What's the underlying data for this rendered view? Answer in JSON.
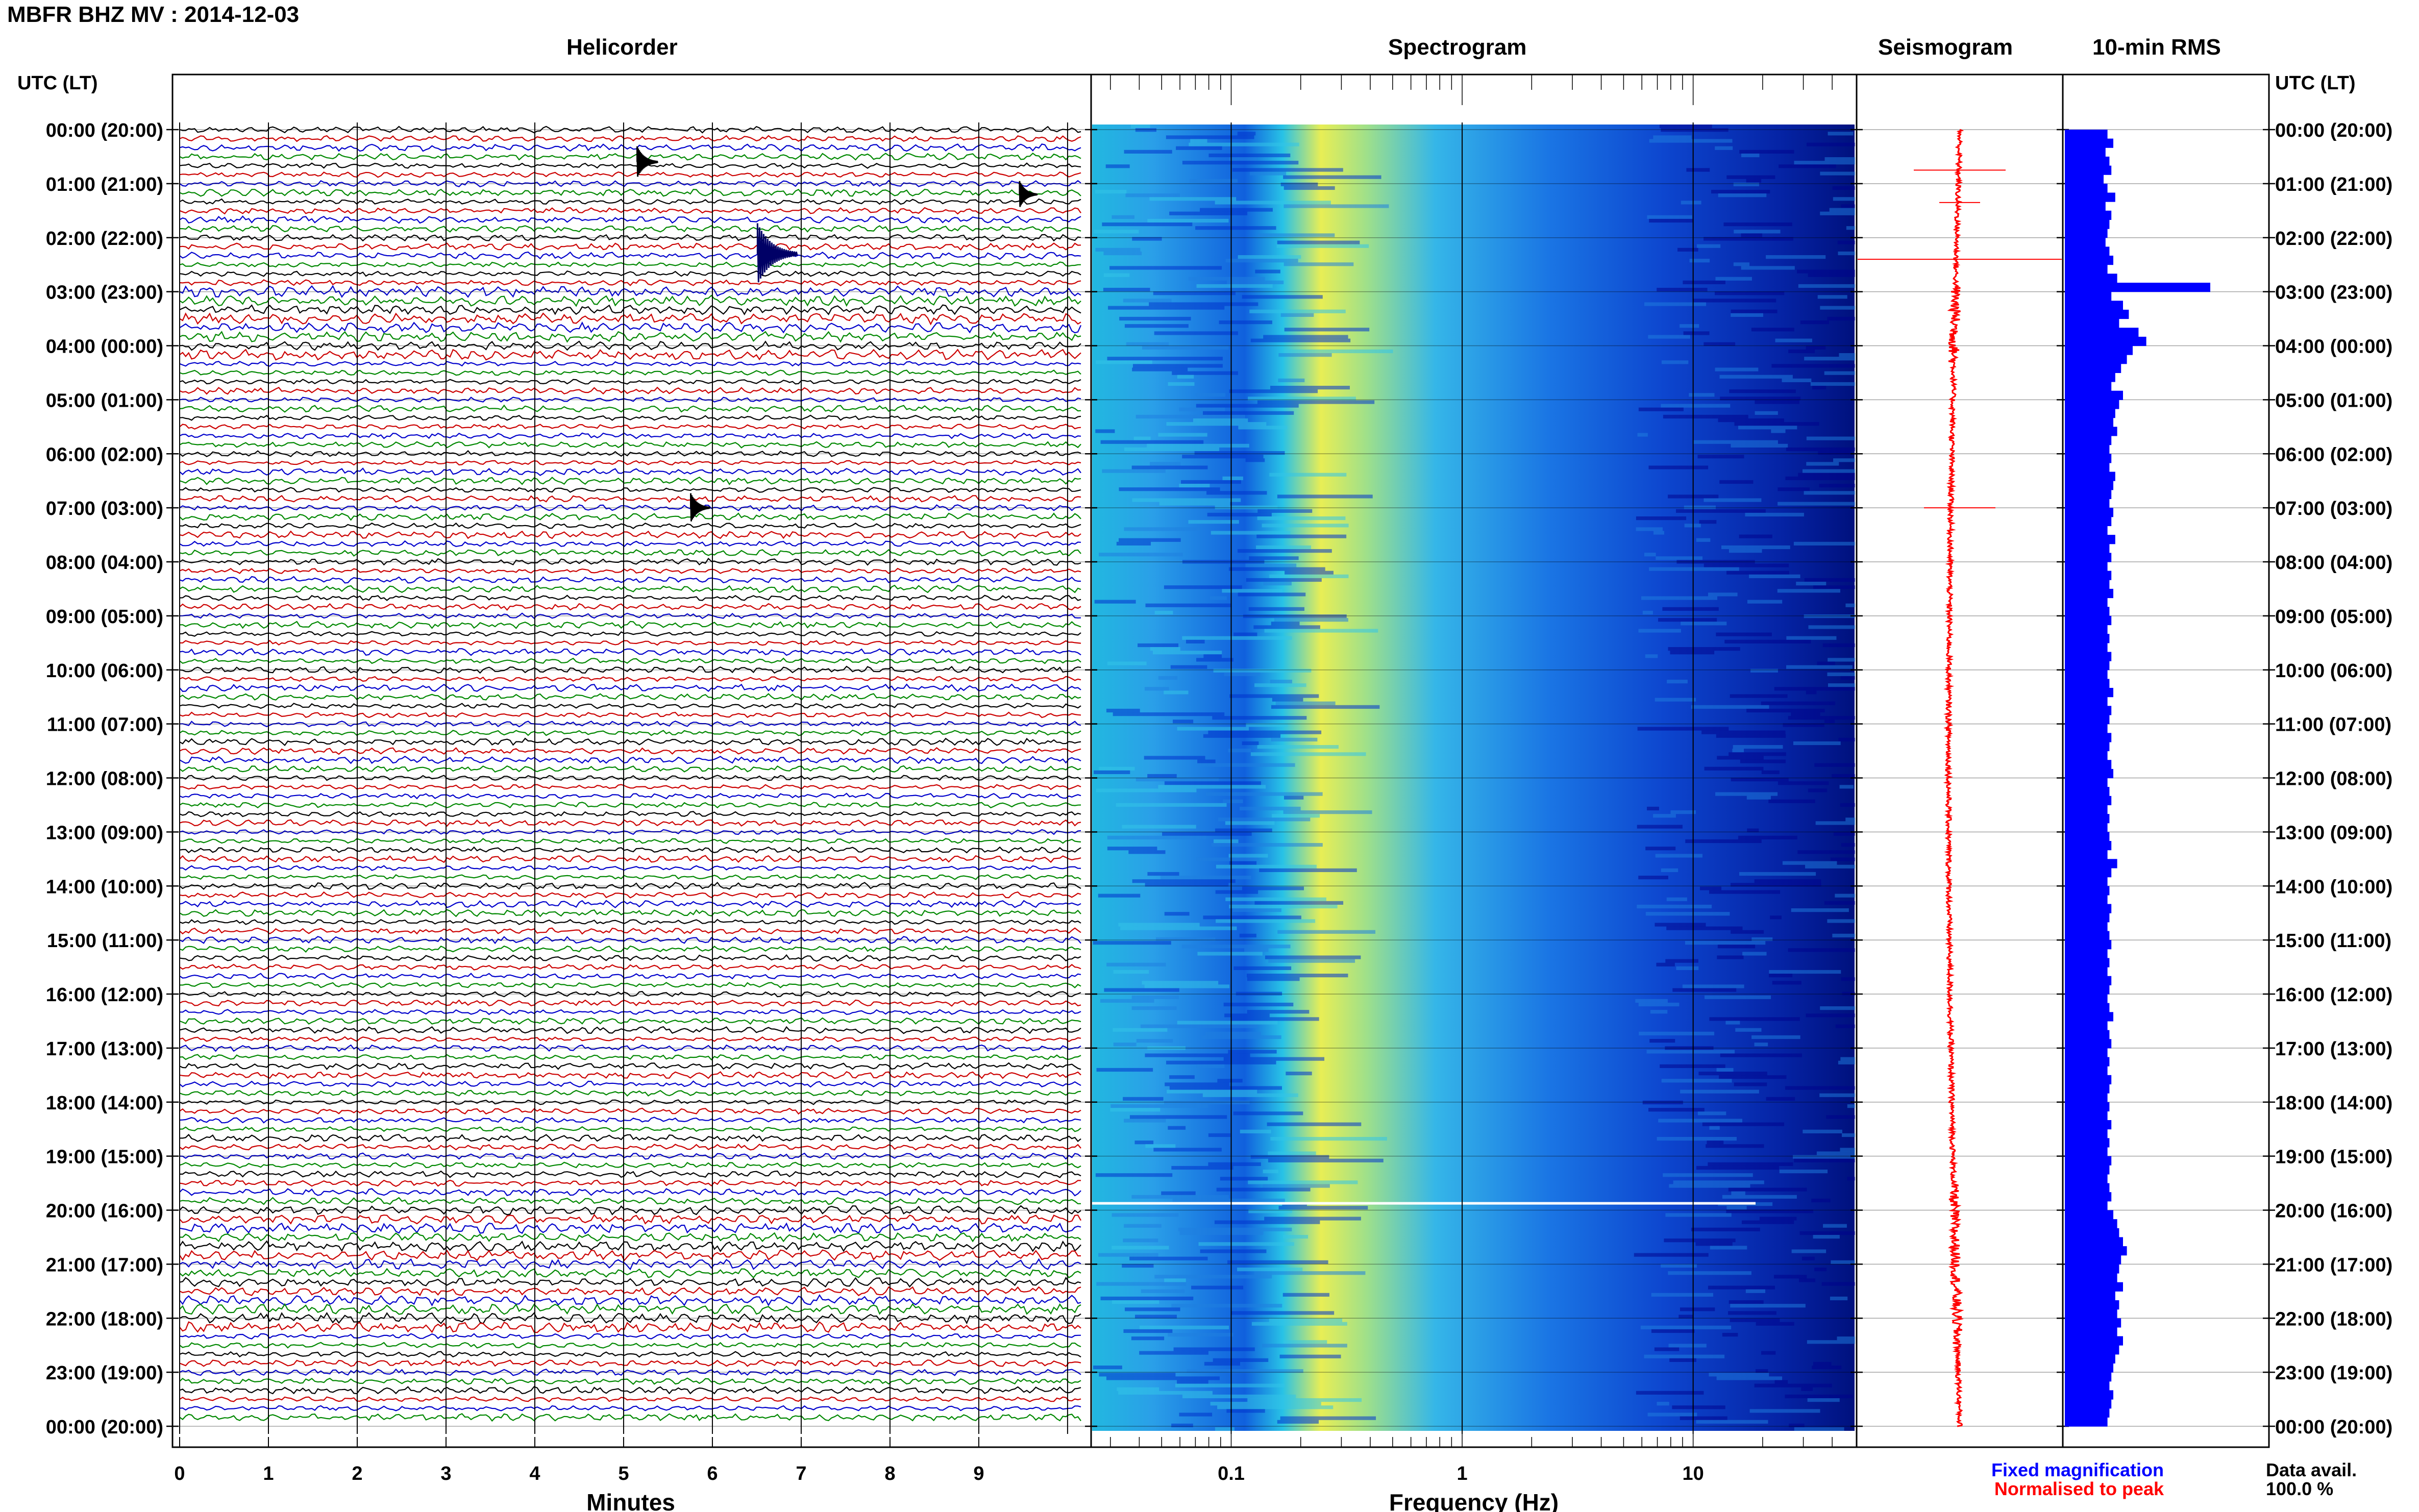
{
  "title": "MBFR BHZ MV : 2014-12-03",
  "panels": {
    "helicorder": "Helicorder",
    "spectrogram": "Spectrogram",
    "seismogram": "Seismogram",
    "rms": "10-min RMS"
  },
  "time_axis_label": "UTC (LT)",
  "time_ticks": [
    "00:00 (20:00)",
    "01:00 (21:00)",
    "02:00 (22:00)",
    "03:00 (23:00)",
    "04:00 (00:00)",
    "05:00 (01:00)",
    "06:00 (02:00)",
    "07:00 (03:00)",
    "08:00 (04:00)",
    "09:00 (05:00)",
    "10:00 (06:00)",
    "11:00 (07:00)",
    "12:00 (08:00)",
    "13:00 (09:00)",
    "14:00 (10:00)",
    "15:00 (11:00)",
    "16:00 (12:00)",
    "17:00 (13:00)",
    "18:00 (14:00)",
    "19:00 (15:00)",
    "20:00 (16:00)",
    "21:00 (17:00)",
    "22:00 (18:00)",
    "23:00 (19:00)",
    "00:00 (20:00)"
  ],
  "helicorder": {
    "xlabel": "Minutes",
    "x_ticks": [
      "0",
      "1",
      "2",
      "3",
      "4",
      "5",
      "6",
      "7",
      "8",
      "9"
    ],
    "trace_colors": [
      "#000000",
      "#cc0000",
      "#0000cc",
      "#008800"
    ],
    "events": [
      {
        "hour": 2.3,
        "minute": 6.6,
        "strength": 1.0
      },
      {
        "hour": 0.6,
        "minute": 5.2,
        "strength": 0.35
      },
      {
        "hour": 7.0,
        "minute": 5.8,
        "strength": 0.3
      },
      {
        "hour": 1.2,
        "minute": 9.5,
        "strength": 0.25
      }
    ]
  },
  "spectrogram": {
    "xlabel": "Frequency (Hz)",
    "x_ticks": [
      "0.1",
      "1",
      "10"
    ],
    "freq_range": [
      0.025,
      50
    ],
    "colors": [
      "#00008b",
      "#0033cc",
      "#1f7fe0",
      "#33c4e8",
      "#f0f050"
    ]
  },
  "legend": {
    "fixed": "Fixed magnification",
    "normalised": "Normalised to peak",
    "fixed_color": "#0000ff",
    "normalised_color": "#ff0000"
  },
  "data_avail": {
    "label": "Data avail.",
    "value": "100.0 %"
  },
  "chart_data": {
    "type": "bar",
    "title": "10-min RMS",
    "orientation": "horizontal",
    "x_unit": "hours UTC",
    "bin_hours": 0.1667,
    "values": [
      0.22,
      0.25,
      0.21,
      0.23,
      0.24,
      0.2,
      0.22,
      0.26,
      0.21,
      0.24,
      0.23,
      0.22,
      0.21,
      0.23,
      0.25,
      0.22,
      0.27,
      0.75,
      0.24,
      0.3,
      0.33,
      0.28,
      0.38,
      0.42,
      0.35,
      0.32,
      0.29,
      0.26,
      0.24,
      0.3,
      0.28,
      0.26,
      0.25,
      0.27,
      0.24,
      0.23,
      0.24,
      0.23,
      0.26,
      0.25,
      0.24,
      0.23,
      0.25,
      0.24,
      0.22,
      0.26,
      0.23,
      0.24,
      0.22,
      0.24,
      0.23,
      0.25,
      0.22,
      0.23,
      0.24,
      0.22,
      0.23,
      0.22,
      0.24,
      0.23,
      0.22,
      0.23,
      0.25,
      0.22,
      0.24,
      0.23,
      0.22,
      0.24,
      0.23,
      0.22,
      0.24,
      0.25,
      0.22,
      0.23,
      0.24,
      0.22,
      0.23,
      0.22,
      0.23,
      0.24,
      0.22,
      0.27,
      0.24,
      0.22,
      0.23,
      0.22,
      0.24,
      0.23,
      0.22,
      0.23,
      0.24,
      0.22,
      0.23,
      0.22,
      0.24,
      0.23,
      0.22,
      0.23,
      0.25,
      0.22,
      0.23,
      0.24,
      0.22,
      0.23,
      0.22,
      0.24,
      0.23,
      0.22,
      0.23,
      0.22,
      0.24,
      0.22,
      0.23,
      0.22,
      0.24,
      0.23,
      0.22,
      0.23,
      0.24,
      0.22,
      0.25,
      0.27,
      0.28,
      0.3,
      0.32,
      0.29,
      0.28,
      0.27,
      0.3,
      0.26,
      0.28,
      0.27,
      0.29,
      0.27,
      0.3,
      0.28,
      0.26,
      0.25,
      0.24,
      0.23,
      0.25,
      0.24,
      0.23,
      0.22
    ]
  }
}
